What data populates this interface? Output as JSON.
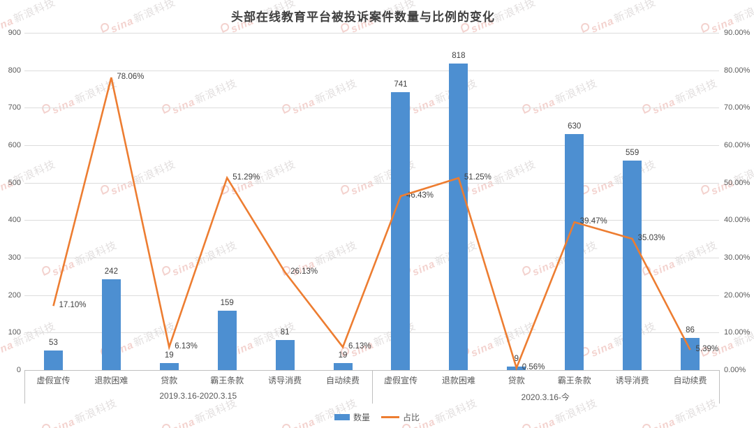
{
  "title": "头部在线教育平台被投诉案件数量与比例的变化",
  "watermark": {
    "brand": "sina",
    "name": "新浪科技"
  },
  "colors": {
    "bar": "#4d8fd1",
    "line": "#ed7d31",
    "grid": "#dcdcdc",
    "axis_text": "#595959",
    "data_label": "#404040"
  },
  "legend": {
    "items": [
      {
        "label": "数量",
        "type": "bar"
      },
      {
        "label": "占比",
        "type": "line"
      }
    ]
  },
  "chart_data": {
    "type": "bar+line",
    "title": "头部在线教育平台被投诉案件数量与比例的变化",
    "grid": true,
    "legend_position": "bottom",
    "categories_per_group": [
      "虚假宣传",
      "退款困难",
      "贷款",
      "霸王条款",
      "诱导消费",
      "自动续费"
    ],
    "groups": [
      {
        "label": "2019.3.16-2020.3.15",
        "counts": [
          53,
          242,
          19,
          159,
          81,
          19
        ],
        "percents": [
          17.1,
          78.06,
          6.13,
          51.29,
          26.13,
          6.13
        ],
        "percent_labels": [
          "17.10%",
          "78.06%",
          "6.13%",
          "51.29%",
          "26.13%",
          "6.13%"
        ]
      },
      {
        "label": "2020.3.16-今",
        "counts": [
          741,
          818,
          9,
          630,
          559,
          86
        ],
        "percents": [
          46.43,
          51.25,
          0.56,
          39.47,
          35.03,
          5.39
        ],
        "percent_labels": [
          "46.43%",
          "51.25%",
          "0.56%",
          "39.47%",
          "35.03%",
          "5.39%"
        ]
      }
    ],
    "series": [
      {
        "name": "数量",
        "type": "bar",
        "axis": "left",
        "values": [
          53,
          242,
          19,
          159,
          81,
          19,
          741,
          818,
          9,
          630,
          559,
          86
        ]
      },
      {
        "name": "占比",
        "type": "line",
        "axis": "right",
        "values": [
          17.1,
          78.06,
          6.13,
          51.29,
          26.13,
          6.13,
          46.43,
          51.25,
          0.56,
          39.47,
          35.03,
          5.39
        ]
      }
    ],
    "left_axis": {
      "min": 0,
      "max": 900,
      "step": 100,
      "ticks": [
        "900",
        "800",
        "700",
        "600",
        "500",
        "400",
        "300",
        "200",
        "100",
        "0"
      ]
    },
    "right_axis": {
      "min": 0,
      "max": 90,
      "step": 10,
      "ticks": [
        "90.00%",
        "80.00%",
        "70.00%",
        "60.00%",
        "50.00%",
        "40.00%",
        "30.00%",
        "20.00%",
        "10.00%",
        "0.00%"
      ]
    }
  }
}
